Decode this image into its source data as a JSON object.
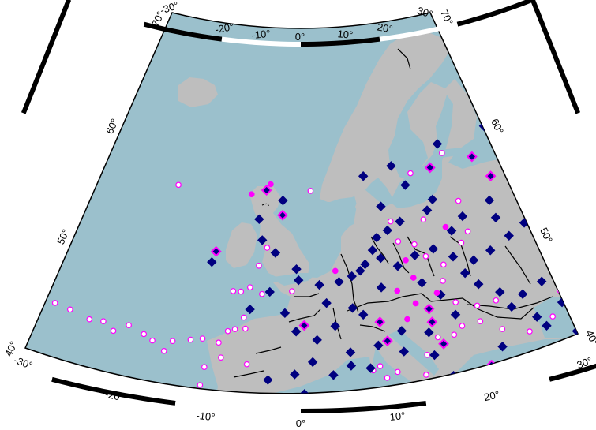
{
  "map": {
    "projection": "Albers conic, Europe",
    "lon_range": [
      -30,
      30
    ],
    "lat_range": [
      40,
      70
    ],
    "colors": {
      "water": "#9bc0cc",
      "land": "#bebebe",
      "frame": "#000000",
      "rivers": "#000000",
      "diamond_fill": "#000080",
      "circle_fill": "#ff00ff",
      "circle_open_fill": "#ffffff",
      "circle_open_stroke": "#ff00ff",
      "diamond_open_stroke": "#ff00ff"
    },
    "labels": {
      "top": [
        "-30°",
        "-20°",
        "-10°",
        "0°",
        "10°",
        "20°",
        "30°"
      ],
      "bottom": [
        "-30°",
        "-20°",
        "-10°",
        "0°",
        "10°",
        "20°",
        "30°"
      ],
      "left": [
        "70°",
        "60°",
        "50°",
        "40°"
      ],
      "right": [
        "70°",
        "60°",
        "50°",
        "40°"
      ]
    }
  },
  "markers": {
    "legend": "none",
    "diamonds_filled_navy": [
      [
        28.2,
        62.2
      ],
      [
        20.0,
        61.4
      ],
      [
        14.7,
        60.8
      ],
      [
        12.5,
        55.6
      ],
      [
        10.7,
        57.9
      ],
      [
        13.2,
        56.4
      ],
      [
        9.5,
        59.6
      ],
      [
        6.5,
        59.0
      ],
      [
        8.0,
        56.4
      ],
      [
        9.7,
        55.0
      ],
      [
        8.4,
        54.4
      ],
      [
        7.3,
        53.9
      ],
      [
        6.8,
        52.9
      ],
      [
        7.5,
        52.2
      ],
      [
        6.0,
        51.8
      ],
      [
        5.5,
        51.3
      ],
      [
        4.7,
        50.9
      ],
      [
        3.5,
        50.5
      ],
      [
        1.7,
        50.3
      ],
      [
        -0.4,
        51.6
      ],
      [
        -2.4,
        52.9
      ],
      [
        -3.7,
        53.9
      ],
      [
        -4.1,
        55.6
      ],
      [
        -1.8,
        57.2
      ],
      [
        -0.2,
        50.7
      ],
      [
        -8.3,
        51.8
      ],
      [
        -2.8,
        49.7
      ],
      [
        -4.5,
        48.2
      ],
      [
        -1.4,
        48.0
      ],
      [
        -0.4,
        46.5
      ],
      [
        1.4,
        45.8
      ],
      [
        2.3,
        48.8
      ],
      [
        4.6,
        48.3
      ],
      [
        3.0,
        46.9
      ],
      [
        5.5,
        47.7
      ],
      [
        7.3,
        49.8
      ],
      [
        9.0,
        51.4
      ],
      [
        10.7,
        52.1
      ],
      [
        12.5,
        52.4
      ],
      [
        14.2,
        51.5
      ],
      [
        16.0,
        50.9
      ],
      [
        17.7,
        51.4
      ],
      [
        19.7,
        52.2
      ],
      [
        21.4,
        52.9
      ],
      [
        18.9,
        53.9
      ],
      [
        14.5,
        53.6
      ],
      [
        15.8,
        54.6
      ],
      [
        18.7,
        55.4
      ],
      [
        23.2,
        56.4
      ],
      [
        25.0,
        56.9
      ],
      [
        15.0,
        50.0
      ],
      [
        11.0,
        49.8
      ],
      [
        12.5,
        48.6
      ],
      [
        16.0,
        48.9
      ],
      [
        17.7,
        47.9
      ],
      [
        19.6,
        47.3
      ],
      [
        21.5,
        47.9
      ],
      [
        23.4,
        48.5
      ],
      [
        25.4,
        51.1
      ],
      [
        27.5,
        48.9
      ],
      [
        27.7,
        45.8
      ],
      [
        25.0,
        46.2
      ],
      [
        22.7,
        45.8
      ],
      [
        20.3,
        45.2
      ],
      [
        18.4,
        46.5
      ],
      [
        13.5,
        46.8
      ],
      [
        11.0,
        45.7
      ],
      [
        8.7,
        46.1
      ],
      [
        6.6,
        45.1
      ],
      [
        4.2,
        44.7
      ],
      [
        1.0,
        44.0
      ],
      [
        -0.5,
        43.0
      ],
      [
        -2.7,
        42.5
      ],
      [
        -5.4,
        41.0
      ],
      [
        -4.0,
        39.1
      ],
      [
        0.3,
        41.4
      ],
      [
        2.7,
        42.9
      ],
      [
        4.2,
        43.6
      ],
      [
        5.8,
        43.3
      ],
      [
        8.7,
        44.4
      ],
      [
        11.2,
        43.8
      ],
      [
        12.5,
        41.9
      ],
      [
        16.9,
        43.5
      ],
      [
        20.9,
        44.3
      ],
      [
        23.2,
        43.2
      ],
      [
        25.0,
        42.7
      ],
      [
        28.2,
        42.0
      ]
    ],
    "diamonds_open": [
      [
        18.5,
        69.2
      ],
      [
        27.7,
        67.6
      ],
      [
        30.3,
        66.5
      ],
      [
        22.1,
        64.3
      ],
      [
        26.0,
        62.2
      ],
      [
        24.9,
        60.1
      ],
      [
        18.0,
        59.2
      ],
      [
        13.5,
        59.0
      ],
      [
        19.4,
        57.3
      ],
      [
        23.1,
        53.4
      ],
      [
        27.5,
        55.2
      ],
      [
        -3.5,
        58.0
      ],
      [
        -8.0,
        52.7
      ],
      [
        0.3,
        47.0
      ],
      [
        11.4,
        46.5
      ],
      [
        11.3,
        47.6
      ],
      [
        6.9,
        47.0
      ],
      [
        7.4,
        45.4
      ],
      [
        12.1,
        44.6
      ],
      [
        15.7,
        42.2
      ],
      [
        20.9,
        40.4
      ],
      [
        -1.8,
        56.0
      ]
    ],
    "circles_filled": [
      [
        -5.0,
        57.6
      ],
      [
        -3.1,
        58.5
      ],
      [
        3.2,
        51.4
      ],
      [
        9.8,
        51.8
      ],
      [
        10.3,
        50.3
      ],
      [
        8.7,
        49.4
      ],
      [
        12.2,
        48.8
      ],
      [
        10.2,
        48.2
      ],
      [
        9.3,
        47.0
      ],
      [
        19.5,
        40.6
      ],
      [
        14.0,
        54.0
      ]
    ],
    "circles_open": [
      [
        -21.5,
        64.2
      ],
      [
        -12.5,
        57.7
      ],
      [
        1.0,
        58.0
      ],
      [
        11.4,
        58.8
      ],
      [
        15.0,
        60.0
      ],
      [
        20.8,
        60.7
      ],
      [
        22.5,
        62.0
      ],
      [
        28.5,
        63.8
      ],
      [
        30.7,
        65.4
      ],
      [
        32.6,
        62.3
      ],
      [
        29.9,
        67.8
      ],
      [
        34.0,
        59.8
      ],
      [
        34.2,
        56.1
      ],
      [
        35.1,
        55.4
      ],
      [
        34.3,
        51.1
      ],
      [
        8.8,
        55.1
      ],
      [
        12.0,
        54.9
      ],
      [
        15.7,
        55.9
      ],
      [
        16.0,
        53.3
      ],
      [
        9.3,
        53.4
      ],
      [
        10.8,
        53.0
      ],
      [
        13.2,
        51.0
      ],
      [
        15.2,
        52.5
      ],
      [
        11.7,
        51.9
      ],
      [
        -3.9,
        51.8
      ],
      [
        -3.2,
        53.3
      ],
      [
        -0.8,
        49.8
      ],
      [
        -4.6,
        50.0
      ],
      [
        -3.5,
        49.5
      ],
      [
        -5.4,
        49.6
      ],
      [
        -6.1,
        49.6
      ],
      [
        -5.0,
        47.5
      ],
      [
        -5.7,
        46.5
      ],
      [
        -4.8,
        46.6
      ],
      [
        -6.3,
        46.3
      ],
      [
        -8.4,
        45.5
      ],
      [
        -9.4,
        45.3
      ],
      [
        -10.9,
        45.0
      ],
      [
        -12.6,
        44.8
      ],
      [
        -11.5,
        44.1
      ],
      [
        -13.4,
        45.2
      ],
      [
        -14.8,
        45.7
      ],
      [
        -16.0,
        45.0
      ],
      [
        -17.0,
        45.6
      ],
      [
        -18.2,
        45.5
      ],
      [
        -20.0,
        45.9
      ],
      [
        -21.4,
        46.1
      ],
      [
        -23.0,
        46.0
      ],
      [
        -26.4,
        46.1
      ],
      [
        -28.5,
        43.2
      ],
      [
        -29.0,
        41.6
      ],
      [
        -26.5,
        39.8
      ],
      [
        -24.5,
        40.1
      ],
      [
        -22.4,
        39.3
      ],
      [
        -20.3,
        39.7
      ],
      [
        -19.7,
        39.1
      ],
      [
        -13.7,
        38.0
      ],
      [
        -13.9,
        38.5
      ],
      [
        -11.3,
        39.7
      ],
      [
        -10.2,
        40.4
      ],
      [
        -8.4,
        40.8
      ],
      [
        -8.2,
        41.7
      ],
      [
        -8.0,
        43.2
      ],
      [
        -6.7,
        44.1
      ],
      [
        -7.0,
        45.3
      ],
      [
        -4.5,
        43.7
      ],
      [
        -3.7,
        40.4
      ],
      [
        -1.4,
        38.0
      ],
      [
        0.6,
        38.2
      ],
      [
        2.5,
        39.2
      ],
      [
        3.6,
        38.3
      ],
      [
        4.6,
        40.0
      ],
      [
        6.0,
        43.1
      ],
      [
        6.6,
        43.4
      ],
      [
        7.1,
        42.4
      ],
      [
        7.3,
        41.4
      ],
      [
        8.0,
        42.8
      ],
      [
        10.3,
        42.3
      ],
      [
        10.6,
        43.9
      ],
      [
        11.7,
        45.2
      ],
      [
        13.1,
        45.2
      ],
      [
        13.9,
        45.8
      ],
      [
        15.5,
        45.9
      ],
      [
        17.2,
        44.9
      ],
      [
        19.4,
        44.2
      ],
      [
        21.0,
        42.2
      ],
      [
        20.5,
        41.3
      ],
      [
        22.4,
        40.8
      ],
      [
        24.5,
        40.2
      ],
      [
        23.6,
        39.8
      ],
      [
        26.0,
        40.2
      ],
      [
        26.4,
        41.6
      ],
      [
        29.1,
        41.0
      ],
      [
        30.5,
        40.1
      ],
      [
        32.3,
        40.7
      ],
      [
        34.8,
        38.8
      ],
      [
        36.0,
        39.5
      ],
      [
        28.0,
        46.5
      ],
      [
        27.0,
        44.4
      ],
      [
        24.5,
        43.4
      ],
      [
        21.6,
        44.9
      ],
      [
        22.8,
        46.8
      ],
      [
        17.2,
        47.3
      ],
      [
        15.5,
        47.2
      ],
      [
        13.7,
        47.8
      ],
      [
        12.9,
        49.7
      ]
    ]
  }
}
